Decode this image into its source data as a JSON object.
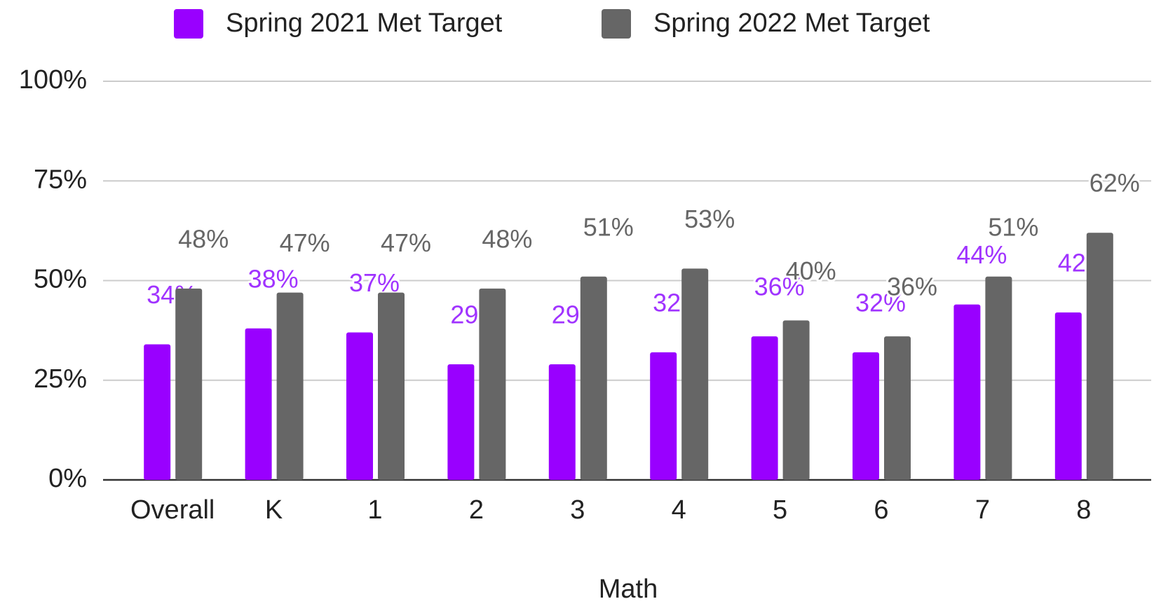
{
  "chart_data": {
    "type": "bar",
    "x_label": "Math",
    "categories": [
      "Overall",
      "K",
      "1",
      "2",
      "3",
      "4",
      "5",
      "6",
      "7",
      "8"
    ],
    "series": [
      {
        "name": "Spring 2021 Met Target",
        "color": "#9900ff",
        "values": [
          34,
          38,
          37,
          29,
          29,
          32,
          36,
          32,
          44,
          42
        ],
        "value_labels": [
          "34%",
          "38%",
          "37%",
          "29%",
          "29%",
          "32%",
          "36%",
          "32%",
          "44%",
          "42%"
        ]
      },
      {
        "name": "Spring 2022 Met Target",
        "color": "#666666",
        "values": [
          48,
          47,
          47,
          48,
          51,
          53,
          40,
          36,
          51,
          62
        ],
        "value_labels": [
          "48%",
          "47%",
          "47%",
          "48%",
          "51%",
          "53%",
          "40%",
          "36%",
          "51%",
          "62%"
        ]
      }
    ],
    "ylim": [
      0,
      100
    ],
    "yticks": [
      {
        "value": 0,
        "label": "0%"
      },
      {
        "value": 25,
        "label": "25%"
      },
      {
        "value": 50,
        "label": "50%"
      },
      {
        "value": 75,
        "label": "75%"
      },
      {
        "value": 100,
        "label": "100%"
      }
    ],
    "grid": true,
    "legend": "top"
  }
}
